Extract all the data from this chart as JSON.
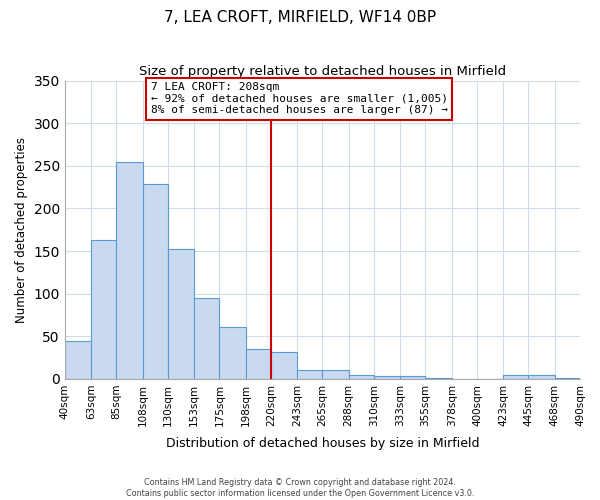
{
  "title": "7, LEA CROFT, MIRFIELD, WF14 0BP",
  "subtitle": "Size of property relative to detached houses in Mirfield",
  "xlabel": "Distribution of detached houses by size in Mirfield",
  "ylabel": "Number of detached properties",
  "bin_labels": [
    "40sqm",
    "63sqm",
    "85sqm",
    "108sqm",
    "130sqm",
    "153sqm",
    "175sqm",
    "198sqm",
    "220sqm",
    "243sqm",
    "265sqm",
    "288sqm",
    "310sqm",
    "333sqm",
    "355sqm",
    "378sqm",
    "400sqm",
    "423sqm",
    "445sqm",
    "468sqm",
    "490sqm"
  ],
  "bar_values": [
    45,
    163,
    254,
    229,
    152,
    95,
    61,
    35,
    32,
    11,
    10,
    5,
    3,
    3,
    1,
    0,
    0,
    5,
    5,
    1,
    1
  ],
  "bar_color": "#c8d9f0",
  "bar_edge_color": "#5b9bd5",
  "vline_color": "#cc0000",
  "ylim": [
    0,
    350
  ],
  "yticks": [
    0,
    50,
    100,
    150,
    200,
    250,
    300,
    350
  ],
  "annotation_title": "7 LEA CROFT: 208sqm",
  "annotation_line1": "← 92% of detached houses are smaller (1,005)",
  "annotation_line2": "8% of semi-detached houses are larger (87) →",
  "annotation_box_color": "#ffffff",
  "annotation_box_edge": "#cc0000",
  "footer1": "Contains HM Land Registry data © Crown copyright and database right 2024.",
  "footer2": "Contains public sector information licensed under the Open Government Licence v3.0.",
  "bin_edges": [
    40,
    63,
    85,
    108,
    130,
    153,
    175,
    198,
    220,
    243,
    265,
    288,
    310,
    333,
    355,
    378,
    400,
    423,
    445,
    468,
    490
  ],
  "vline_bin_index": 8,
  "grid_color": "#d0dce8",
  "title_fontsize": 11,
  "subtitle_fontsize": 9.5
}
